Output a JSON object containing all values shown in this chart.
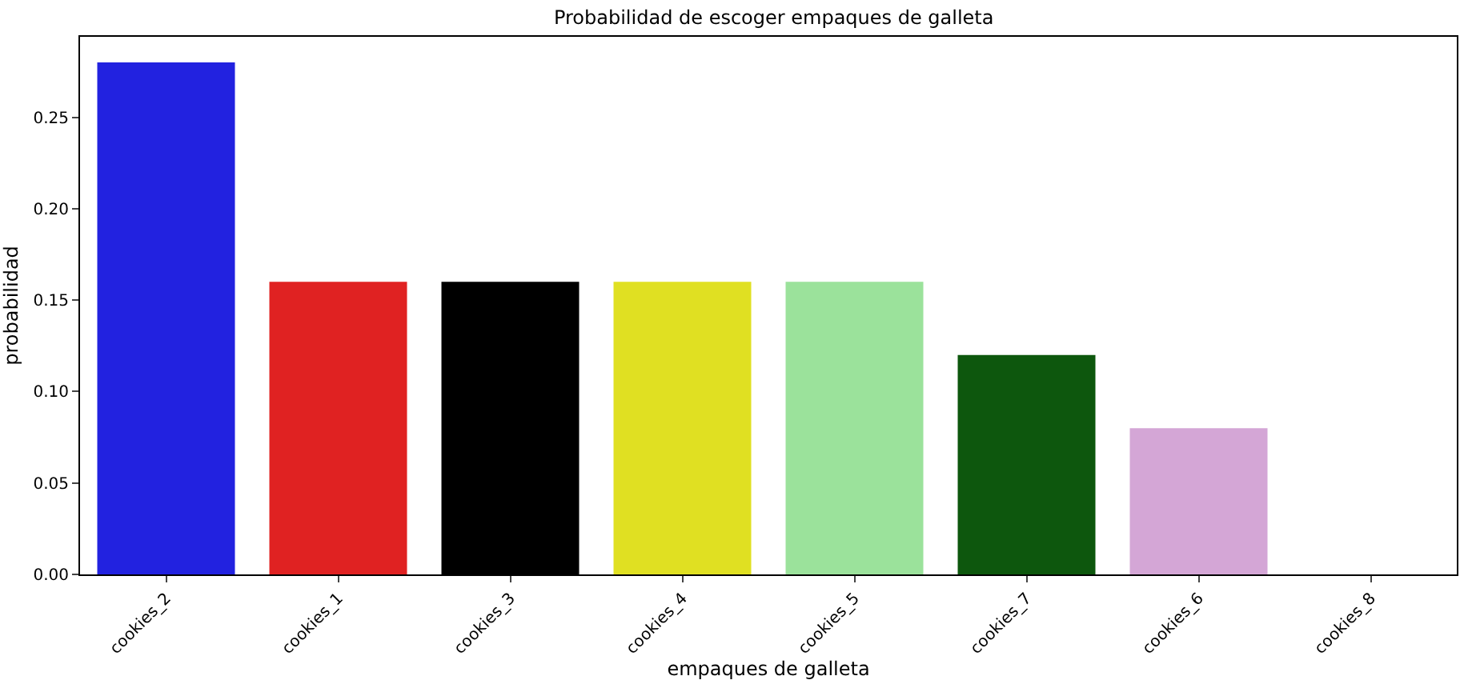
{
  "chart_data": {
    "type": "bar",
    "title": "Probabilidad de escoger empaques de galleta",
    "xlabel": "empaques de galleta",
    "ylabel": "probabilidad",
    "categories": [
      "cookies_2",
      "cookies_1",
      "cookies_3",
      "cookies_4",
      "cookies_5",
      "cookies_7",
      "cookies_6",
      "cookies_8"
    ],
    "values": [
      0.28,
      0.16,
      0.16,
      0.16,
      0.16,
      0.12,
      0.08,
      0
    ],
    "colors": [
      "#2222e0",
      "#e02222",
      "#000000",
      "#e0e022",
      "#9be29b",
      "#0d570d",
      "#d4a6d6",
      "#2222e0"
    ],
    "ylim": [
      0,
      0.294
    ],
    "yticks": [
      {
        "value": 0,
        "label": "0.00"
      },
      {
        "value": 0.05,
        "label": "0.05"
      },
      {
        "value": 0.1,
        "label": "0.10"
      },
      {
        "value": 0.15,
        "label": "0.15"
      },
      {
        "value": 0.2,
        "label": "0.20"
      },
      {
        "value": 0.25,
        "label": "0.25"
      }
    ]
  }
}
